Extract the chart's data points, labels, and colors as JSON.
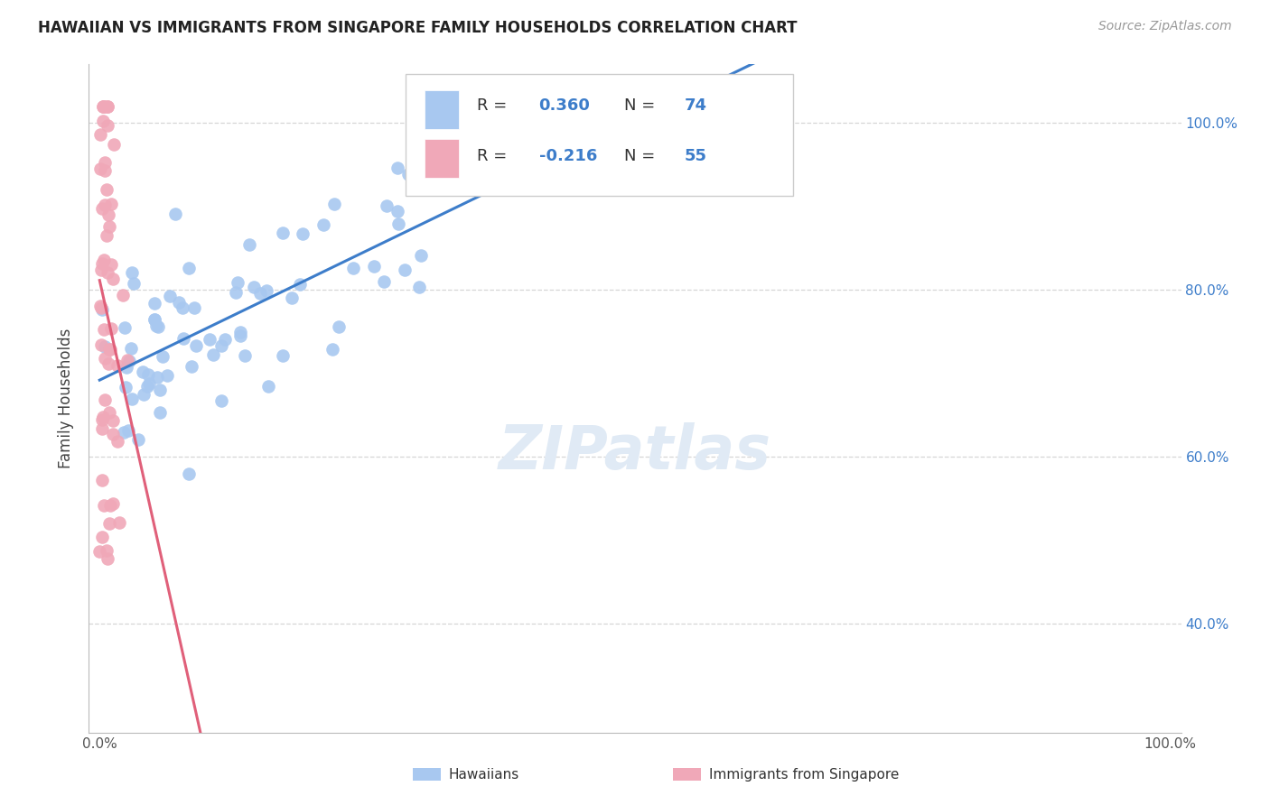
{
  "title": "HAWAIIAN VS IMMIGRANTS FROM SINGAPORE FAMILY HOUSEHOLDS CORRELATION CHART",
  "source": "Source: ZipAtlas.com",
  "ylabel": "Family Households",
  "blue_R": 0.36,
  "blue_N": 74,
  "pink_R": -0.216,
  "pink_N": 55,
  "blue_color": "#a8c8f0",
  "pink_color": "#f0a8b8",
  "blue_line_color": "#3d7dca",
  "pink_line_color": "#e0607a",
  "watermark": "ZIPatlas",
  "legend_text_color": "#333333",
  "legend_value_color": "#3d7dca",
  "right_axis_color": "#3d7dca",
  "grid_color": "#cccccc",
  "blue_seed": 10,
  "pink_seed": 20
}
